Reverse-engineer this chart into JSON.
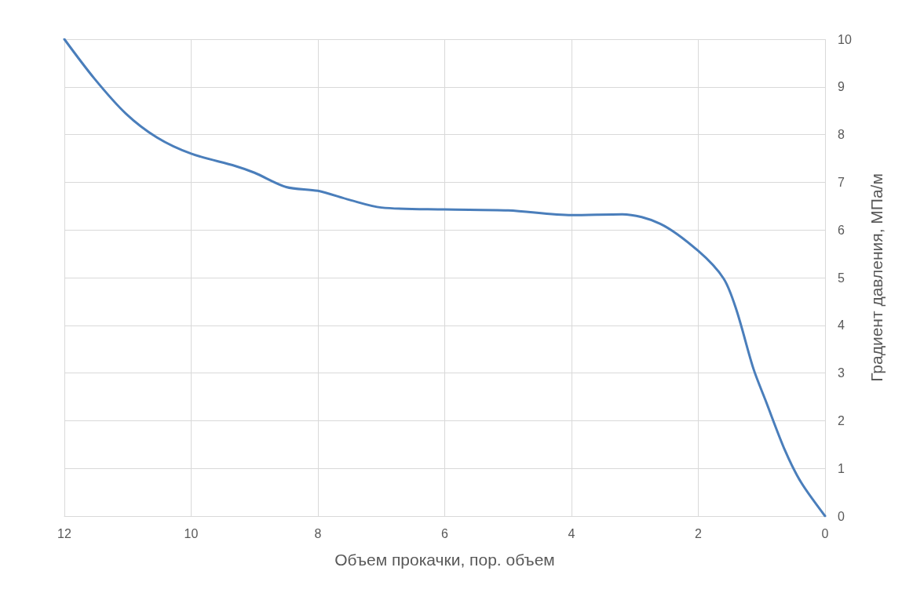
{
  "chart_data": {
    "type": "line",
    "xlabel": "Объем прокачки, пор. объем",
    "ylabel": "Градиент давления, МПа/м",
    "x": [
      12,
      11.53,
      11.03,
      10.54,
      10,
      9.3,
      9,
      8.5,
      8,
      7.5,
      7,
      6,
      5,
      4,
      3.2,
      2.6,
      2,
      1.6,
      1.4,
      1.13,
      0.94,
      0.63,
      0.38,
      0
    ],
    "series": [
      {
        "color": "#4a7ebb",
        "values": [
          10,
          9.18,
          8.44,
          7.94,
          7.6,
          7.34,
          7.2,
          6.9,
          6.82,
          6.63,
          6.47,
          6.43,
          6.41,
          6.31,
          6.33,
          6.13,
          5.56,
          4.98,
          4.33,
          3.09,
          2.43,
          1.37,
          0.71,
          0
        ]
      }
    ],
    "xlim": [
      12,
      0
    ],
    "xticks": [
      12,
      10,
      8,
      6,
      4,
      2,
      0
    ],
    "ylim": [
      0,
      10
    ],
    "yticks": [
      0,
      1,
      2,
      3,
      4,
      5,
      6,
      7,
      8,
      9,
      10
    ],
    "grid": true,
    "marker": "none",
    "line_style": "solid"
  }
}
